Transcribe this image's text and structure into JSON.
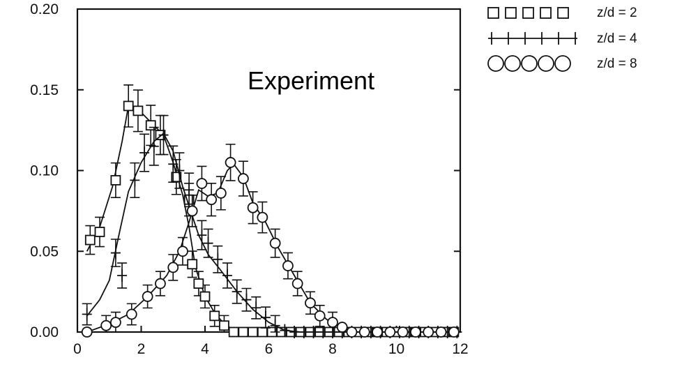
{
  "chart_data": {
    "type": "scatter",
    "title": "",
    "xlabel": "",
    "ylabel": "",
    "xlim": [
      0,
      12
    ],
    "ylim": [
      0,
      0.2
    ],
    "xticks": [
      "0",
      "2",
      "4",
      "6",
      "8",
      "10",
      "12"
    ],
    "yticks": [
      "0.00",
      "0.05",
      "0.10",
      "0.15",
      "0.20"
    ],
    "grid": false,
    "legend_position": "outside-top-right",
    "annotation": "Experiment",
    "series": [
      {
        "name": "z/d = 2",
        "marker": "square",
        "points": [
          [
            0.4,
            0.057
          ],
          [
            0.7,
            0.062
          ],
          [
            1.2,
            0.094
          ],
          [
            1.6,
            0.14
          ],
          [
            1.9,
            0.137
          ],
          [
            2.3,
            0.128
          ],
          [
            2.6,
            0.122
          ],
          [
            3.1,
            0.096
          ],
          [
            3.5,
            0.082
          ],
          [
            3.6,
            0.042
          ],
          [
            3.8,
            0.03
          ],
          [
            4.0,
            0.022
          ],
          [
            4.3,
            0.01
          ],
          [
            4.6,
            0.004
          ],
          [
            4.9,
            0.0
          ],
          [
            5.2,
            0.0
          ],
          [
            5.5,
            0.0
          ],
          [
            5.8,
            0.0
          ],
          [
            6.1,
            0.0
          ],
          [
            6.4,
            0.0
          ],
          [
            6.7,
            0.0
          ],
          [
            7.0,
            0.0
          ],
          [
            7.3,
            0.0
          ],
          [
            7.6,
            0.0
          ],
          [
            7.9,
            0.0
          ],
          [
            8.2,
            0.0
          ],
          [
            8.5,
            0.0
          ],
          [
            8.8,
            0.0
          ],
          [
            9.1,
            0.0
          ],
          [
            9.4,
            0.0
          ],
          [
            9.7,
            0.0
          ],
          [
            10.0,
            0.0
          ],
          [
            10.3,
            0.0
          ],
          [
            10.6,
            0.0
          ],
          [
            10.9,
            0.0
          ],
          [
            11.2,
            0.0
          ],
          [
            11.5,
            0.0
          ],
          [
            11.8,
            0.0
          ]
        ],
        "curve": [
          [
            0.3,
            0.05
          ],
          [
            0.7,
            0.065
          ],
          [
            1.1,
            0.09
          ],
          [
            1.4,
            0.118
          ],
          [
            1.6,
            0.14
          ],
          [
            1.9,
            0.138
          ],
          [
            2.3,
            0.13
          ],
          [
            2.7,
            0.122
          ],
          [
            3.0,
            0.105
          ],
          [
            3.3,
            0.085
          ],
          [
            3.5,
            0.065
          ],
          [
            3.7,
            0.04
          ],
          [
            4.0,
            0.022
          ],
          [
            4.3,
            0.012
          ],
          [
            4.6,
            0.005
          ],
          [
            5.0,
            0.0
          ],
          [
            12.0,
            0.0
          ]
        ]
      },
      {
        "name": "z/d = 4",
        "marker": "plus",
        "points": [
          [
            0.3,
            0.011
          ],
          [
            1.2,
            0.049
          ],
          [
            1.4,
            0.035
          ],
          [
            1.8,
            0.094
          ],
          [
            2.1,
            0.111
          ],
          [
            2.4,
            0.115
          ],
          [
            2.7,
            0.122
          ],
          [
            3.0,
            0.104
          ],
          [
            3.2,
            0.1
          ],
          [
            3.5,
            0.088
          ],
          [
            3.9,
            0.06
          ],
          [
            4.1,
            0.055
          ],
          [
            4.4,
            0.045
          ],
          [
            4.7,
            0.035
          ],
          [
            5.0,
            0.025
          ],
          [
            5.3,
            0.02
          ],
          [
            5.6,
            0.015
          ],
          [
            5.9,
            0.009
          ],
          [
            6.2,
            0.004
          ],
          [
            6.5,
            0.001
          ],
          [
            6.8,
            0.0
          ],
          [
            7.1,
            0.0
          ],
          [
            7.4,
            0.0
          ],
          [
            7.7,
            0.0
          ],
          [
            8.0,
            0.0
          ],
          [
            8.3,
            0.0
          ],
          [
            8.6,
            0.0
          ],
          [
            8.9,
            0.0
          ],
          [
            9.2,
            0.0
          ],
          [
            9.5,
            0.0
          ],
          [
            9.8,
            0.0
          ],
          [
            10.1,
            0.0
          ],
          [
            10.4,
            0.0
          ],
          [
            10.7,
            0.0
          ],
          [
            11.0,
            0.0
          ],
          [
            11.3,
            0.0
          ],
          [
            11.6,
            0.0
          ],
          [
            11.9,
            0.0
          ]
        ],
        "curve": [
          [
            0.3,
            0.01
          ],
          [
            0.7,
            0.02
          ],
          [
            1.0,
            0.032
          ],
          [
            1.3,
            0.06
          ],
          [
            1.6,
            0.087
          ],
          [
            2.0,
            0.105
          ],
          [
            2.4,
            0.118
          ],
          [
            2.7,
            0.123
          ],
          [
            3.0,
            0.112
          ],
          [
            3.3,
            0.09
          ],
          [
            3.5,
            0.078
          ],
          [
            3.8,
            0.06
          ],
          [
            4.1,
            0.048
          ],
          [
            4.5,
            0.038
          ],
          [
            5.0,
            0.025
          ],
          [
            5.5,
            0.014
          ],
          [
            6.0,
            0.006
          ],
          [
            6.5,
            0.001
          ],
          [
            7.0,
            0.0
          ],
          [
            12.0,
            0.0
          ]
        ]
      },
      {
        "name": "z/d = 8",
        "marker": "circle",
        "points": [
          [
            0.3,
            0.0
          ],
          [
            0.9,
            0.004
          ],
          [
            1.2,
            0.006
          ],
          [
            1.7,
            0.011
          ],
          [
            2.2,
            0.022
          ],
          [
            2.6,
            0.03
          ],
          [
            3.0,
            0.04
          ],
          [
            3.3,
            0.05
          ],
          [
            3.6,
            0.075
          ],
          [
            3.9,
            0.092
          ],
          [
            4.2,
            0.082
          ],
          [
            4.5,
            0.086
          ],
          [
            4.8,
            0.105
          ],
          [
            5.2,
            0.095
          ],
          [
            5.5,
            0.077
          ],
          [
            5.8,
            0.071
          ],
          [
            6.2,
            0.055
          ],
          [
            6.6,
            0.041
          ],
          [
            6.9,
            0.03
          ],
          [
            7.3,
            0.018
          ],
          [
            7.6,
            0.01
          ],
          [
            8.0,
            0.006
          ],
          [
            8.3,
            0.003
          ],
          [
            8.6,
            0.0
          ],
          [
            9.0,
            0.0
          ],
          [
            9.4,
            0.0
          ],
          [
            9.8,
            0.0
          ],
          [
            10.2,
            0.0
          ],
          [
            10.6,
            0.0
          ],
          [
            11.0,
            0.0
          ],
          [
            11.4,
            0.0
          ],
          [
            11.8,
            0.0
          ]
        ],
        "curve": [
          [
            0.3,
            0.0
          ],
          [
            1.0,
            0.005
          ],
          [
            1.6,
            0.011
          ],
          [
            2.2,
            0.022
          ],
          [
            2.8,
            0.035
          ],
          [
            3.2,
            0.05
          ],
          [
            3.5,
            0.068
          ],
          [
            3.8,
            0.088
          ],
          [
            4.1,
            0.084
          ],
          [
            4.4,
            0.086
          ],
          [
            4.7,
            0.1
          ],
          [
            4.9,
            0.104
          ],
          [
            5.2,
            0.096
          ],
          [
            5.5,
            0.08
          ],
          [
            5.9,
            0.068
          ],
          [
            6.3,
            0.052
          ],
          [
            6.8,
            0.035
          ],
          [
            7.3,
            0.018
          ],
          [
            7.8,
            0.008
          ],
          [
            8.3,
            0.002
          ],
          [
            8.8,
            0.0
          ],
          [
            12.0,
            0.0
          ]
        ]
      }
    ]
  }
}
